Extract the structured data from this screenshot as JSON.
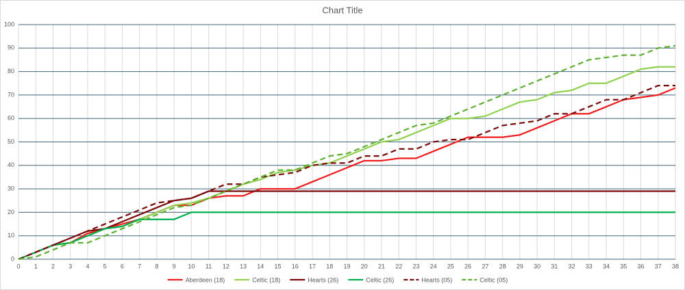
{
  "chart_data": {
    "type": "line",
    "title": "Chart Title",
    "x": [
      0,
      1,
      2,
      3,
      4,
      5,
      6,
      7,
      8,
      9,
      10,
      11,
      12,
      13,
      14,
      15,
      16,
      17,
      18,
      19,
      20,
      21,
      22,
      23,
      24,
      25,
      26,
      27,
      28,
      29,
      30,
      31,
      32,
      33,
      34,
      35,
      36,
      37,
      38
    ],
    "xlim": [
      0,
      38
    ],
    "xticks": [
      0,
      1,
      2,
      3,
      4,
      5,
      6,
      7,
      8,
      9,
      10,
      11,
      12,
      13,
      14,
      15,
      16,
      17,
      18,
      19,
      20,
      21,
      22,
      23,
      24,
      25,
      26,
      27,
      28,
      29,
      30,
      31,
      32,
      33,
      34,
      35,
      36,
      37,
      38
    ],
    "ylim": [
      0,
      100
    ],
    "yticks": [
      0,
      10,
      20,
      30,
      40,
      50,
      60,
      70,
      80,
      90,
      100
    ],
    "grid": true,
    "legend": "bottom",
    "series": [
      {
        "name": "Aberdeen (18)",
        "color": "#ee1c1c",
        "dash": false,
        "values": [
          0,
          3,
          6,
          7,
          11,
          13,
          15,
          17,
          20,
          23,
          23,
          26,
          27,
          27,
          30,
          30,
          30,
          33,
          36,
          39,
          42,
          42,
          43,
          43,
          46,
          49,
          52,
          52,
          52,
          53,
          56,
          59,
          62,
          62,
          65,
          68,
          69,
          70,
          73
        ]
      },
      {
        "name": "Celtic (18)",
        "color": "#92d050",
        "dash": false,
        "values": [
          0,
          3,
          6,
          7,
          10,
          13,
          14,
          17,
          20,
          23,
          24,
          26,
          29,
          32,
          34,
          37,
          38,
          40,
          41,
          44,
          47,
          50,
          51,
          54,
          57,
          60,
          60,
          61,
          64,
          67,
          68,
          71,
          72,
          75,
          75,
          78,
          81,
          82,
          82
        ]
      },
      {
        "name": "Hearts (26)",
        "color": "#7b0b0b",
        "dash": false,
        "values": [
          0,
          3,
          6,
          9,
          12,
          13,
          16,
          19,
          22,
          25,
          26,
          29,
          29,
          29,
          29,
          29,
          29,
          29,
          29,
          29,
          29,
          29,
          29,
          29,
          29,
          29,
          29,
          29,
          29,
          29,
          29,
          29,
          29,
          29,
          29,
          29,
          29,
          29,
          29
        ]
      },
      {
        "name": "Celtic (26)",
        "color": "#00b050",
        "dash": false,
        "values": [
          0,
          3,
          6,
          7,
          10,
          13,
          14,
          17,
          17,
          17,
          20,
          20,
          20,
          20,
          20,
          20,
          20,
          20,
          20,
          20,
          20,
          20,
          20,
          20,
          20,
          20,
          20,
          20,
          20,
          20,
          20,
          20,
          20,
          20,
          20,
          20,
          20,
          20,
          20
        ]
      },
      {
        "name": "Hearts (05)",
        "color": "#7b0b0b",
        "dash": true,
        "values": [
          0,
          3,
          6,
          9,
          12,
          15,
          18,
          21,
          24,
          25,
          26,
          29,
          32,
          32,
          35,
          36,
          37,
          40,
          41,
          41,
          44,
          44,
          47,
          47,
          50,
          51,
          51,
          54,
          57,
          58,
          59,
          62,
          62,
          65,
          68,
          68,
          71,
          74,
          74
        ]
      },
      {
        "name": "Celtic (05)",
        "color": "#5fb030",
        "dash": true,
        "values": [
          0,
          1,
          4,
          7,
          7,
          10,
          13,
          16,
          19,
          22,
          23,
          26,
          29,
          32,
          35,
          38,
          38,
          41,
          44,
          45,
          48,
          51,
          54,
          57,
          58,
          61,
          64,
          67,
          70,
          73,
          76,
          79,
          82,
          85,
          86,
          87,
          87,
          90,
          91
        ]
      }
    ]
  }
}
